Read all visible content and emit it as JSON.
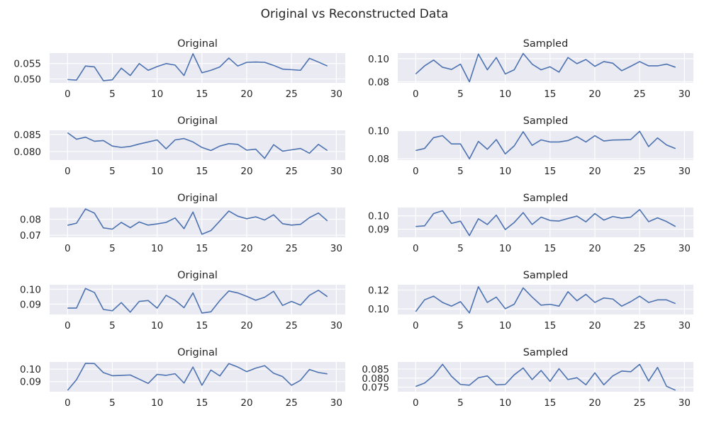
{
  "figure": {
    "suptitle": "Original vs Reconstructed Data"
  },
  "style": {
    "line_color": "#4c72b0",
    "plot_background": "#eaeaf2",
    "grid_color": "#ffffff"
  },
  "chart_data": [
    {
      "type": "line",
      "title": "Original",
      "xlim": [
        -2,
        31
      ],
      "ylim": [
        0.0487,
        0.0584
      ],
      "xticks": [
        0,
        5,
        10,
        15,
        20,
        25,
        30
      ],
      "xtick_labels": [
        "0",
        "5",
        "10",
        "15",
        "20",
        "25",
        "30"
      ],
      "yticks": [
        0.05,
        0.055
      ],
      "ytick_labels": [
        "0.050",
        "0.055"
      ],
      "grid": true,
      "x": [
        0,
        1,
        2,
        3,
        4,
        5,
        6,
        7,
        8,
        9,
        10,
        11,
        12,
        13,
        14,
        15,
        16,
        17,
        18,
        19,
        20,
        21,
        22,
        23,
        24,
        25,
        26,
        27,
        28,
        29
      ],
      "values": [
        0.0498,
        0.0496,
        0.0542,
        0.0539,
        0.0494,
        0.0497,
        0.0535,
        0.0511,
        0.055,
        0.0528,
        0.054,
        0.055,
        0.0545,
        0.0511,
        0.0582,
        0.052,
        0.0528,
        0.0539,
        0.0568,
        0.0542,
        0.0554,
        0.0555,
        0.0554,
        0.0544,
        0.0532,
        0.053,
        0.0528,
        0.0567,
        0.0555,
        0.0542
      ]
    },
    {
      "type": "line",
      "title": "Sampled",
      "xlim": [
        -2,
        31
      ],
      "ylim": [
        0.0791,
        0.1048
      ],
      "xticks": [
        0,
        5,
        10,
        15,
        20,
        25,
        30
      ],
      "xtick_labels": [
        "0",
        "5",
        "10",
        "15",
        "20",
        "25",
        "30"
      ],
      "yticks": [
        0.08,
        0.1
      ],
      "ytick_labels": [
        "0.08",
        "0.10"
      ],
      "grid": true,
      "x": [
        0,
        1,
        2,
        3,
        4,
        5,
        6,
        7,
        8,
        9,
        10,
        11,
        12,
        13,
        14,
        15,
        16,
        17,
        18,
        19,
        20,
        21,
        22,
        23,
        24,
        25,
        26,
        27,
        28,
        29
      ],
      "values": [
        0.0868,
        0.0938,
        0.0988,
        0.0926,
        0.0907,
        0.0953,
        0.08,
        0.104,
        0.0904,
        0.101,
        0.0868,
        0.0904,
        0.1045,
        0.0953,
        0.0904,
        0.093,
        0.0884,
        0.101,
        0.0957,
        0.0993,
        0.0934,
        0.0975,
        0.0961,
        0.0896,
        0.0934,
        0.0975,
        0.0938,
        0.0938,
        0.0953,
        0.0926
      ]
    },
    {
      "type": "line",
      "title": "Original",
      "xlim": [
        -2,
        31
      ],
      "ylim": [
        0.0775,
        0.0862
      ],
      "xticks": [
        0,
        5,
        10,
        15,
        20,
        25,
        30
      ],
      "xtick_labels": [
        "0",
        "5",
        "10",
        "15",
        "20",
        "25",
        "30"
      ],
      "yticks": [
        0.08,
        0.085
      ],
      "ytick_labels": [
        "0.080",
        "0.085"
      ],
      "grid": true,
      "x": [
        0,
        1,
        2,
        3,
        4,
        5,
        6,
        7,
        8,
        9,
        10,
        11,
        12,
        13,
        14,
        15,
        16,
        17,
        18,
        19,
        20,
        21,
        22,
        23,
        24,
        25,
        26,
        27,
        28,
        29
      ],
      "values": [
        0.0855,
        0.0836,
        0.0842,
        0.083,
        0.0832,
        0.0816,
        0.0812,
        0.0815,
        0.0822,
        0.0828,
        0.0834,
        0.0808,
        0.0834,
        0.0838,
        0.0828,
        0.0812,
        0.0803,
        0.0816,
        0.0823,
        0.0821,
        0.0804,
        0.0807,
        0.078,
        0.082,
        0.0801,
        0.0805,
        0.0809,
        0.0795,
        0.0821,
        0.0803
      ]
    },
    {
      "type": "line",
      "title": "Sampled",
      "xlim": [
        -2,
        31
      ],
      "ylim": [
        0.0791,
        0.1003
      ],
      "xticks": [
        0,
        5,
        10,
        15,
        20,
        25,
        30
      ],
      "xtick_labels": [
        "0",
        "5",
        "10",
        "15",
        "20",
        "25",
        "30"
      ],
      "yticks": [
        0.08,
        0.1
      ],
      "ytick_labels": [
        "0.08",
        "0.10"
      ],
      "grid": true,
      "x": [
        0,
        1,
        2,
        3,
        4,
        5,
        6,
        7,
        8,
        9,
        10,
        11,
        12,
        13,
        14,
        15,
        16,
        17,
        18,
        19,
        20,
        21,
        22,
        23,
        24,
        25,
        26,
        27,
        28,
        29
      ],
      "values": [
        0.0859,
        0.0874,
        0.0951,
        0.0965,
        0.0906,
        0.0906,
        0.08,
        0.0924,
        0.0868,
        0.0937,
        0.0835,
        0.0892,
        0.0993,
        0.0896,
        0.0935,
        0.092,
        0.092,
        0.093,
        0.0958,
        0.092,
        0.0965,
        0.0927,
        0.0934,
        0.0935,
        0.0937,
        0.0996,
        0.0887,
        0.0949,
        0.0899,
        0.0873
      ]
    },
    {
      "type": "line",
      "title": "Original",
      "xlim": [
        -2,
        31
      ],
      "ylim": [
        0.0687,
        0.0873
      ],
      "xticks": [
        0,
        5,
        10,
        15,
        20,
        25,
        30
      ],
      "xtick_labels": [
        "0",
        "5",
        "10",
        "15",
        "20",
        "25",
        "30"
      ],
      "yticks": [
        0.07,
        0.08
      ],
      "ytick_labels": [
        "0.07",
        "0.08"
      ],
      "grid": true,
      "x": [
        0,
        1,
        2,
        3,
        4,
        5,
        6,
        7,
        8,
        9,
        10,
        11,
        12,
        13,
        14,
        15,
        16,
        17,
        18,
        19,
        20,
        21,
        22,
        23,
        24,
        25,
        26,
        27,
        28,
        29
      ],
      "values": [
        0.0762,
        0.0775,
        0.0864,
        0.0838,
        0.0746,
        0.0738,
        0.078,
        0.0747,
        0.0783,
        0.0763,
        0.0771,
        0.078,
        0.0808,
        0.0741,
        0.0845,
        0.0706,
        0.0729,
        0.0789,
        0.0851,
        0.0819,
        0.0803,
        0.0815,
        0.0795,
        0.0828,
        0.0772,
        0.0763,
        0.0768,
        0.081,
        0.0839,
        0.079
      ]
    },
    {
      "type": "line",
      "title": "Sampled",
      "xlim": [
        -2,
        31
      ],
      "ylim": [
        0.0839,
        0.1062
      ],
      "xticks": [
        0,
        5,
        10,
        15,
        20,
        25,
        30
      ],
      "xtick_labels": [
        "0",
        "5",
        "10",
        "15",
        "20",
        "25",
        "30"
      ],
      "yticks": [
        0.09,
        0.1
      ],
      "ytick_labels": [
        "0.09",
        "0.10"
      ],
      "grid": true,
      "x": [
        0,
        1,
        2,
        3,
        4,
        5,
        6,
        7,
        8,
        9,
        10,
        11,
        12,
        13,
        14,
        15,
        16,
        17,
        18,
        19,
        20,
        21,
        22,
        23,
        24,
        25,
        26,
        27,
        28,
        29
      ],
      "values": [
        0.092,
        0.0925,
        0.1017,
        0.1038,
        0.0943,
        0.096,
        0.0852,
        0.0978,
        0.0935,
        0.1005,
        0.0897,
        0.095,
        0.1024,
        0.0935,
        0.099,
        0.0965,
        0.0961,
        0.098,
        0.0998,
        0.0955,
        0.1017,
        0.0968,
        0.0995,
        0.0982,
        0.099,
        0.1047,
        0.0956,
        0.0985,
        0.0957,
        0.092
      ]
    },
    {
      "type": "line",
      "title": "Original",
      "xlim": [
        -2,
        31
      ],
      "ylim": [
        0.083,
        0.103
      ],
      "xticks": [
        0,
        5,
        10,
        15,
        20,
        25,
        30
      ],
      "xtick_labels": [
        "0",
        "5",
        "10",
        "15",
        "20",
        "25",
        "30"
      ],
      "yticks": [
        0.09,
        0.1
      ],
      "ytick_labels": [
        "0.09",
        "0.10"
      ],
      "grid": true,
      "x": [
        0,
        1,
        2,
        3,
        4,
        5,
        6,
        7,
        8,
        9,
        10,
        11,
        12,
        13,
        14,
        15,
        16,
        17,
        18,
        19,
        20,
        21,
        22,
        23,
        24,
        25,
        26,
        27,
        28,
        29
      ],
      "values": [
        0.0873,
        0.0873,
        0.1005,
        0.0978,
        0.0864,
        0.0855,
        0.091,
        0.0846,
        0.0918,
        0.0924,
        0.0873,
        0.0959,
        0.0926,
        0.0876,
        0.0975,
        0.084,
        0.0848,
        0.0924,
        0.0988,
        0.0975,
        0.0952,
        0.0926,
        0.0946,
        0.0986,
        0.0891,
        0.0918,
        0.0893,
        0.0959,
        0.0993,
        0.095
      ]
    },
    {
      "type": "line",
      "title": "Sampled",
      "xlim": [
        -2,
        31
      ],
      "ylim": [
        0.0942,
        0.1255
      ],
      "xticks": [
        0,
        5,
        10,
        15,
        20,
        25,
        30
      ],
      "xtick_labels": [
        "0",
        "5",
        "10",
        "15",
        "20",
        "25",
        "30"
      ],
      "yticks": [
        0.1,
        0.12
      ],
      "ytick_labels": [
        "0.10",
        "0.12"
      ],
      "grid": true,
      "x": [
        0,
        1,
        2,
        3,
        4,
        5,
        6,
        7,
        8,
        9,
        10,
        11,
        12,
        13,
        14,
        15,
        16,
        17,
        18,
        19,
        20,
        21,
        22,
        23,
        24,
        25,
        26,
        27,
        28,
        29
      ],
      "values": [
        0.0972,
        0.1097,
        0.1135,
        0.1069,
        0.103,
        0.1077,
        0.0959,
        0.1234,
        0.1069,
        0.1125,
        0.1003,
        0.105,
        0.1222,
        0.1125,
        0.104,
        0.1049,
        0.103,
        0.1182,
        0.1087,
        0.1154,
        0.1069,
        0.1116,
        0.1105,
        0.103,
        0.1077,
        0.1135,
        0.1069,
        0.1096,
        0.1096,
        0.1057
      ]
    },
    {
      "type": "line",
      "title": "Original",
      "xlim": [
        -2,
        31
      ],
      "ylim": [
        0.0818,
        0.1058
      ],
      "xticks": [
        0,
        5,
        10,
        15,
        20,
        25,
        30
      ],
      "xtick_labels": [
        "0",
        "5",
        "10",
        "15",
        "20",
        "25",
        "30"
      ],
      "yticks": [
        0.09,
        0.1
      ],
      "ytick_labels": [
        "0.09",
        "0.10"
      ],
      "grid": true,
      "x": [
        0,
        1,
        2,
        3,
        4,
        5,
        6,
        7,
        8,
        9,
        10,
        11,
        12,
        13,
        14,
        15,
        16,
        17,
        18,
        19,
        20,
        21,
        22,
        23,
        24,
        25,
        26,
        27,
        28,
        29
      ],
      "values": [
        0.0829,
        0.0915,
        0.1047,
        0.1045,
        0.0972,
        0.0947,
        0.095,
        0.0953,
        0.0919,
        0.0885,
        0.0958,
        0.095,
        0.0963,
        0.0888,
        0.1017,
        0.087,
        0.0993,
        0.0945,
        0.1045,
        0.1017,
        0.098,
        0.1008,
        0.1028,
        0.0967,
        0.094,
        0.087,
        0.091,
        0.0997,
        0.0973,
        0.0962
      ]
    },
    {
      "type": "line",
      "title": "Sampled",
      "xlim": [
        -2,
        31
      ],
      "ylim": [
        0.0725,
        0.0889
      ],
      "xticks": [
        0,
        5,
        10,
        15,
        20,
        25,
        30
      ],
      "xtick_labels": [
        "0",
        "5",
        "10",
        "15",
        "20",
        "25",
        "30"
      ],
      "yticks": [
        0.075,
        0.08,
        0.085
      ],
      "ytick_labels": [
        "0.075",
        "0.080",
        "0.085"
      ],
      "grid": true,
      "x": [
        0,
        1,
        2,
        3,
        4,
        5,
        6,
        7,
        8,
        9,
        10,
        11,
        12,
        13,
        14,
        15,
        16,
        17,
        18,
        19,
        20,
        21,
        22,
        23,
        24,
        25,
        26,
        27,
        28,
        29
      ],
      "values": [
        0.0754,
        0.0773,
        0.0814,
        0.0876,
        0.081,
        0.0765,
        0.0761,
        0.0802,
        0.0812,
        0.0763,
        0.0765,
        0.0818,
        0.0856,
        0.0792,
        0.0842,
        0.0782,
        0.0852,
        0.0792,
        0.0802,
        0.0763,
        0.0829,
        0.0763,
        0.0812,
        0.0839,
        0.0835,
        0.0876,
        0.0784,
        0.0859,
        0.0755,
        0.0733
      ]
    }
  ]
}
